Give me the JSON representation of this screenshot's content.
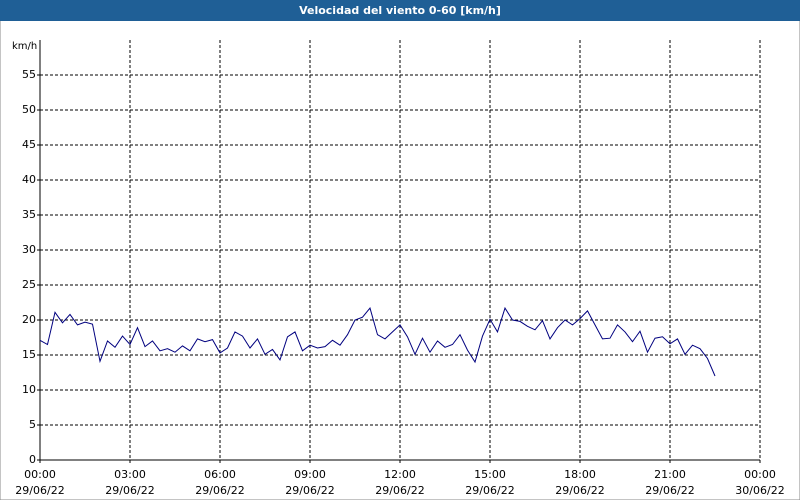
{
  "chart_data": {
    "type": "line",
    "title": "Velocidad del viento 0-60 [km/h]",
    "y_label": "km/h",
    "x": [
      0,
      0.25,
      0.5,
      0.75,
      1,
      1.25,
      1.5,
      1.75,
      2,
      2.25,
      2.5,
      2.75,
      3,
      3.25,
      3.5,
      3.75,
      4,
      4.25,
      4.5,
      4.75,
      5,
      5.25,
      5.5,
      5.75,
      6,
      6.25,
      6.5,
      6.75,
      7,
      7.25,
      7.5,
      7.75,
      8,
      8.25,
      8.5,
      8.75,
      9,
      9.25,
      9.5,
      9.75,
      10,
      10.25,
      10.5,
      10.75,
      11,
      11.25,
      11.5,
      11.75,
      12,
      12.25,
      12.5,
      12.75,
      13,
      13.25,
      13.5,
      13.75,
      14,
      14.25,
      14.5,
      14.75,
      15,
      15.25,
      15.5,
      15.75,
      16,
      16.25,
      16.5,
      16.75,
      17,
      17.25,
      17.5,
      17.75,
      18,
      18.25,
      18.5,
      18.75,
      19,
      19.25,
      19.5,
      19.75,
      20,
      20.25,
      20.5,
      20.75,
      21,
      21.25,
      21.5,
      21.75,
      22,
      22.25,
      22.5
    ],
    "series": [
      {
        "color": "#00007f",
        "values": [
          17.1,
          16.5,
          21.1,
          19.6,
          20.8,
          19.3,
          19.7,
          19.4,
          14.1,
          17.0,
          16.1,
          17.7,
          16.5,
          18.9,
          16.2,
          17.0,
          15.6,
          15.9,
          15.4,
          16.3,
          15.6,
          17.3,
          16.9,
          17.2,
          15.3,
          16.0,
          18.3,
          17.7,
          16.0,
          17.3,
          15.1,
          15.8,
          14.3,
          17.6,
          18.3,
          15.6,
          16.4,
          16.0,
          16.2,
          17.1,
          16.4,
          17.9,
          20.0,
          20.4,
          21.7,
          17.9,
          17.3,
          18.3,
          19.3,
          17.6,
          15.1,
          17.4,
          15.4,
          17.0,
          16.1,
          16.5,
          17.9,
          15.7,
          14.0,
          17.7,
          20.1,
          18.3,
          21.7,
          20.0,
          19.8,
          19.1,
          18.6,
          19.9,
          17.3,
          18.9,
          20.0,
          19.3,
          20.2,
          21.3,
          19.3,
          17.3,
          17.4,
          19.3,
          18.3,
          16.9,
          18.4,
          15.4,
          17.4,
          17.6,
          16.6,
          17.3,
          15.1,
          16.4,
          15.9,
          14.5,
          12.0
        ]
      }
    ],
    "xlim": [
      0,
      24
    ],
    "xticks": [
      {
        "value": 0,
        "label": "00:00"
      },
      {
        "value": 3,
        "label": "03:00"
      },
      {
        "value": 6,
        "label": "06:00"
      },
      {
        "value": 9,
        "label": "09:00"
      },
      {
        "value": 12,
        "label": "12:00"
      },
      {
        "value": 15,
        "label": "15:00"
      },
      {
        "value": 18,
        "label": "18:00"
      },
      {
        "value": 21,
        "label": "21:00"
      },
      {
        "value": 24,
        "label": "00:00"
      }
    ],
    "xtick_dates": [
      "29/06/22",
      "29/06/22",
      "29/06/22",
      "29/06/22",
      "29/06/22",
      "29/06/22",
      "29/06/22",
      "29/06/22",
      "30/06/22"
    ],
    "ylim": [
      0,
      60
    ],
    "yticks": [
      0,
      5,
      10,
      15,
      20,
      25,
      30,
      35,
      40,
      45,
      50,
      55
    ],
    "grid": true
  }
}
